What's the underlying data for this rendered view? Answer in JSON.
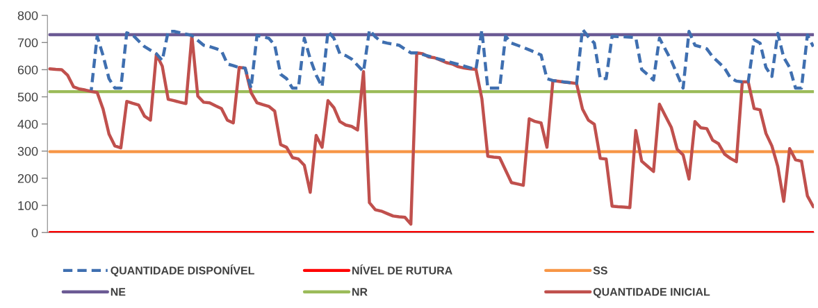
{
  "chart_data": {
    "type": "line",
    "categories": [
      null,
      null,
      null,
      null,
      null,
      null,
      null,
      null,
      null,
      null,
      null,
      null,
      null,
      null,
      null,
      null,
      null,
      null,
      null,
      null,
      null,
      null,
      null,
      null,
      null,
      null,
      null,
      null,
      null,
      null,
      null,
      null,
      null,
      null,
      null,
      null,
      null,
      null,
      null,
      null,
      null,
      null,
      null,
      null,
      null,
      null,
      null,
      null,
      null,
      null,
      null,
      null,
      null,
      null,
      null,
      null,
      null,
      null,
      null,
      null,
      null,
      null,
      null,
      null,
      null,
      null,
      null,
      null,
      null,
      null,
      null,
      null,
      null,
      null,
      null,
      null,
      null,
      null,
      null,
      null,
      null,
      null,
      null,
      null,
      null,
      null,
      null,
      null,
      null,
      null,
      null,
      null,
      null,
      null,
      null,
      null,
      null,
      null,
      null,
      null,
      null,
      null,
      null,
      null,
      null,
      null,
      null,
      null,
      null,
      null,
      null,
      null,
      null,
      null,
      null,
      null,
      null,
      null,
      null,
      null,
      null,
      null,
      null,
      null,
      null,
      null,
      null,
      null,
      null,
      null
    ],
    "ylim": [
      0,
      800
    ],
    "yticks": [
      0,
      100,
      200,
      300,
      400,
      500,
      600,
      700,
      800
    ],
    "grid": false,
    "legend": "bottom",
    "marker": "none",
    "series": [
      {
        "name": "QUANTIDADE DISPONÍVEL",
        "color": "#3f6fb0",
        "line_style": "dashed",
        "values": [
          null,
          null,
          null,
          null,
          null,
          null,
          null,
          524,
          723,
          652,
          567,
          532,
          532,
          736,
          728,
          706,
          685,
          672,
          659,
          634,
          741,
          741,
          736,
          731,
          726,
          708,
          690,
          685,
          678,
          670,
          621,
          615,
          608,
          606,
          532,
          726,
          721,
          716,
          690,
          583,
          567,
          532,
          532,
          716,
          640,
          580,
          537,
          741,
          716,
          659,
          652,
          639,
          616,
          593,
          746,
          721,
          703,
          698,
          694,
          690,
          676,
          662,
          662,
          null,
          null,
          null,
          null,
          null,
          null,
          null,
          null,
          null,
          601,
          746,
          532,
          532,
          532,
          723,
          698,
          690,
          682,
          673,
          664,
          654,
          567,
          560,
          null,
          null,
          null,
          549,
          749,
          721,
          698,
          567,
          567,
          723,
          722,
          721,
          720,
          718,
          601,
          582,
          562,
          716,
          675,
          634,
          583,
          532,
          741,
          690,
          684,
          677,
          647,
          627,
          606,
          570,
          558,
          555,
          555,
          710,
          698,
          608,
          575,
          734,
          645,
          608,
          532,
          532,
          728,
          685
        ]
      },
      {
        "name": "NÍVEL DE RUTURA",
        "color": "#ff0000",
        "line_style": "solid",
        "values": [
          0,
          0,
          0,
          0,
          0,
          0,
          0,
          0,
          0,
          0,
          0,
          0,
          0,
          0,
          0,
          0,
          0,
          0,
          0,
          0,
          0,
          0,
          0,
          0,
          0,
          0,
          0,
          0,
          0,
          0,
          0,
          0,
          0,
          0,
          0,
          0,
          0,
          0,
          0,
          0,
          0,
          0,
          0,
          0,
          0,
          0,
          0,
          0,
          0,
          0,
          0,
          0,
          0,
          0,
          0,
          0,
          0,
          0,
          0,
          0,
          0,
          0,
          0,
          0,
          0,
          0,
          0,
          0,
          0,
          0,
          0,
          0,
          0,
          0,
          0,
          0,
          0,
          0,
          0,
          0,
          0,
          0,
          0,
          0,
          0,
          0,
          0,
          0,
          0,
          0,
          0,
          0,
          0,
          0,
          0,
          0,
          0,
          0,
          0,
          0,
          0,
          0,
          0,
          0,
          0,
          0,
          0,
          0,
          0,
          0,
          0,
          0,
          0,
          0,
          0,
          0,
          0,
          0,
          0,
          0,
          0,
          0,
          0,
          0,
          0,
          0,
          0,
          0,
          0,
          0
        ]
      },
      {
        "name": "SS",
        "color": "#f79646",
        "line_style": "solid",
        "values": [
          298,
          298,
          298,
          298,
          298,
          298,
          298,
          298,
          298,
          298,
          298,
          298,
          298,
          298,
          298,
          298,
          298,
          298,
          298,
          298,
          298,
          298,
          298,
          298,
          298,
          298,
          298,
          298,
          298,
          298,
          298,
          298,
          298,
          298,
          298,
          298,
          298,
          298,
          298,
          298,
          298,
          298,
          298,
          298,
          298,
          298,
          298,
          298,
          298,
          298,
          298,
          298,
          298,
          298,
          298,
          298,
          298,
          298,
          298,
          298,
          298,
          298,
          298,
          298,
          298,
          298,
          298,
          298,
          298,
          298,
          298,
          298,
          298,
          298,
          298,
          298,
          298,
          298,
          298,
          298,
          298,
          298,
          298,
          298,
          298,
          298,
          298,
          298,
          298,
          298,
          298,
          298,
          298,
          298,
          298,
          298,
          298,
          298,
          298,
          298,
          298,
          298,
          298,
          298,
          298,
          298,
          298,
          298,
          298,
          298,
          298,
          298,
          298,
          298,
          298,
          298,
          298,
          298,
          298,
          298,
          298,
          298,
          298,
          298,
          298,
          298,
          298,
          298,
          298,
          298
        ]
      },
      {
        "name": "NE",
        "color": "#6b5a94",
        "line_style": "solid",
        "values": [
          729,
          729,
          729,
          729,
          729,
          729,
          729,
          729,
          729,
          729,
          729,
          729,
          729,
          729,
          729,
          729,
          729,
          729,
          729,
          729,
          729,
          729,
          729,
          729,
          729,
          729,
          729,
          729,
          729,
          729,
          729,
          729,
          729,
          729,
          729,
          729,
          729,
          729,
          729,
          729,
          729,
          729,
          729,
          729,
          729,
          729,
          729,
          729,
          729,
          729,
          729,
          729,
          729,
          729,
          729,
          729,
          729,
          729,
          729,
          729,
          729,
          729,
          729,
          729,
          729,
          729,
          729,
          729,
          729,
          729,
          729,
          729,
          729,
          729,
          729,
          729,
          729,
          729,
          729,
          729,
          729,
          729,
          729,
          729,
          729,
          729,
          729,
          729,
          729,
          729,
          729,
          729,
          729,
          729,
          729,
          729,
          729,
          729,
          729,
          729,
          729,
          729,
          729,
          729,
          729,
          729,
          729,
          729,
          729,
          729,
          729,
          729,
          729,
          729,
          729,
          729,
          729,
          729,
          729,
          729,
          729,
          729,
          729,
          729,
          729,
          729,
          729,
          729,
          729,
          729
        ]
      },
      {
        "name": "NR",
        "color": "#9bbb59",
        "line_style": "solid",
        "values": [
          519,
          519,
          519,
          519,
          519,
          519,
          519,
          519,
          519,
          519,
          519,
          519,
          519,
          519,
          519,
          519,
          519,
          519,
          519,
          519,
          519,
          519,
          519,
          519,
          519,
          519,
          519,
          519,
          519,
          519,
          519,
          519,
          519,
          519,
          519,
          519,
          519,
          519,
          519,
          519,
          519,
          519,
          519,
          519,
          519,
          519,
          519,
          519,
          519,
          519,
          519,
          519,
          519,
          519,
          519,
          519,
          519,
          519,
          519,
          519,
          519,
          519,
          519,
          519,
          519,
          519,
          519,
          519,
          519,
          519,
          519,
          519,
          519,
          519,
          519,
          519,
          519,
          519,
          519,
          519,
          519,
          519,
          519,
          519,
          519,
          519,
          519,
          519,
          519,
          519,
          519,
          519,
          519,
          519,
          519,
          519,
          519,
          519,
          519,
          519,
          519,
          519,
          519,
          519,
          519,
          519,
          519,
          519,
          519,
          519,
          519,
          519,
          519,
          519,
          519,
          519,
          519,
          519,
          519,
          519,
          519,
          519,
          519,
          519,
          519,
          519,
          519,
          519,
          519,
          519
        ]
      },
      {
        "name": "QUANTIDADE INICIAL",
        "color": "#c0504d",
        "line_style": "solid",
        "values": [
          603,
          601,
          600,
          580,
          537,
          529,
          525,
          520,
          516,
          455,
          363,
          319,
          312,
          483,
          476,
          470,
          429,
          414,
          657,
          613,
          491,
          486,
          480,
          475,
          726,
          503,
          480,
          478,
          467,
          457,
          414,
          404,
          608,
          606,
          516,
          478,
          471,
          465,
          447,
          324,
          314,
          276,
          271,
          248,
          148,
          358,
          314,
          486,
          460,
          409,
          396,
          391,
          378,
          593,
          110,
          84,
          79,
          70,
          61,
          58,
          56,
          31,
          662,
          659,
          647,
          644,
          635,
          626,
          621,
          611,
          606,
          603,
          601,
          493,
          281,
          278,
          276,
          230,
          184,
          179,
          174,
          419,
          409,
          404,
          314,
          560,
          557,
          554,
          552,
          549,
          455,
          414,
          399,
          273,
          271,
          97,
          95,
          94,
          92,
          376,
          263,
          244,
          225,
          473,
          430,
          388,
          307,
          286,
          197,
          409,
          386,
          383,
          340,
          327,
          289,
          273,
          261,
          555,
          555,
          457,
          452,
          365,
          319,
          243,
          115,
          309,
          268,
          263,
          135,
          95
        ]
      }
    ]
  }
}
